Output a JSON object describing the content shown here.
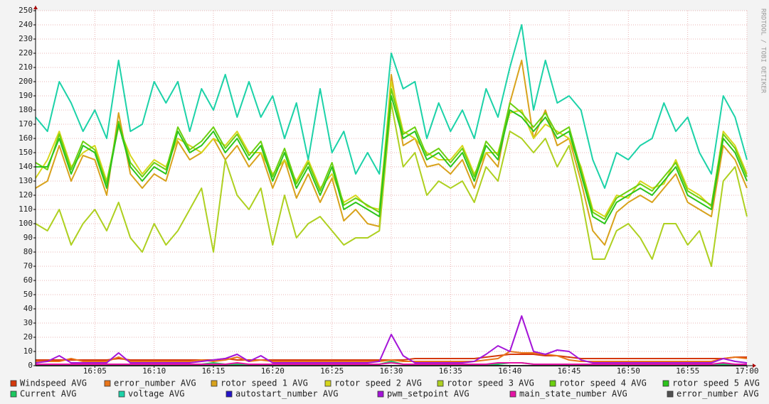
{
  "chart_data": {
    "type": "line",
    "watermark": "RRDTOOL / TOBI OETIKER",
    "x": [
      960,
      961,
      962,
      963,
      964,
      965,
      966,
      967,
      968,
      969,
      970,
      971,
      972,
      973,
      974,
      975,
      976,
      977,
      978,
      979,
      980,
      981,
      982,
      983,
      984,
      985,
      986,
      987,
      988,
      989,
      990,
      991,
      992,
      993,
      994,
      995,
      996,
      997,
      998,
      999,
      1000,
      1001,
      1002,
      1003,
      1004,
      1005,
      1006,
      1007,
      1008,
      1009,
      1010,
      1011,
      1012,
      1013,
      1014,
      1015,
      1016,
      1017,
      1018,
      1019,
      1020
    ],
    "xlim": [
      960,
      1020
    ],
    "xticks": [
      {
        "value": 965,
        "label": "16:05"
      },
      {
        "value": 970,
        "label": "16:10"
      },
      {
        "value": 975,
        "label": "16:15"
      },
      {
        "value": 980,
        "label": "16:20"
      },
      {
        "value": 985,
        "label": "16:25"
      },
      {
        "value": 990,
        "label": "16:30"
      },
      {
        "value": 995,
        "label": "16:35"
      },
      {
        "value": 1000,
        "label": "16:40"
      },
      {
        "value": 1005,
        "label": "16:45"
      },
      {
        "value": 1010,
        "label": "16:50"
      },
      {
        "value": 1015,
        "label": "16:55"
      },
      {
        "value": 1020,
        "label": "17:00"
      }
    ],
    "ylim": [
      0,
      250
    ],
    "yticks": [
      0,
      10,
      20,
      30,
      40,
      50,
      60,
      70,
      80,
      90,
      100,
      110,
      120,
      130,
      140,
      150,
      160,
      170,
      180,
      190,
      200,
      210,
      220,
      230,
      240,
      250
    ],
    "grid": true,
    "series": [
      {
        "name": "Windspeed AVG",
        "color": "#d4380c",
        "values": [
          4,
          4,
          4,
          4,
          4,
          4,
          4,
          5,
          4,
          4,
          4,
          4,
          4,
          4,
          4,
          4,
          5,
          4,
          4,
          4,
          4,
          4,
          4,
          4,
          4,
          4,
          4,
          4,
          4,
          4,
          4,
          4,
          5,
          5,
          5,
          5,
          5,
          5,
          6,
          7,
          8,
          8,
          8,
          7,
          7,
          6,
          5,
          5,
          5,
          5,
          5,
          5,
          5,
          5,
          5,
          5,
          5,
          5,
          5,
          6,
          6
        ]
      },
      {
        "name": "error_number AVG",
        "color": "#e8751a",
        "values": [
          3,
          3,
          3,
          5,
          3,
          3,
          3,
          6,
          3,
          3,
          3,
          3,
          3,
          3,
          4,
          3,
          4,
          6,
          3,
          4,
          3,
          3,
          3,
          3,
          3,
          3,
          3,
          3,
          3,
          3,
          4,
          3,
          3,
          3,
          3,
          3,
          3,
          3,
          4,
          5,
          10,
          9,
          9,
          8,
          7,
          4,
          3,
          3,
          3,
          3,
          3,
          3,
          3,
          3,
          3,
          3,
          3,
          3,
          5,
          6,
          5
        ]
      },
      {
        "name": "rotor speed 1 AVG",
        "color": "#d8a21c",
        "values": [
          125,
          130,
          155,
          130,
          148,
          145,
          120,
          178,
          135,
          125,
          135,
          130,
          158,
          145,
          150,
          160,
          145,
          155,
          140,
          150,
          125,
          145,
          118,
          135,
          115,
          132,
          102,
          110,
          100,
          98,
          205,
          155,
          160,
          140,
          142,
          135,
          145,
          125,
          150,
          140,
          185,
          215,
          160,
          180,
          155,
          160,
          130,
          95,
          85,
          108,
          115,
          120,
          115,
          125,
          135,
          115,
          110,
          105,
          155,
          145,
          125
        ]
      },
      {
        "name": "rotor speed 2 AVG",
        "color": "#d6d61c",
        "values": [
          132,
          145,
          165,
          140,
          150,
          155,
          130,
          168,
          148,
          135,
          145,
          140,
          160,
          155,
          150,
          160,
          155,
          165,
          150,
          150,
          135,
          145,
          130,
          145,
          125,
          135,
          115,
          120,
          112,
          110,
          200,
          165,
          160,
          150,
          145,
          145,
          155,
          135,
          150,
          150,
          178,
          180,
          160,
          170,
          165,
          160,
          140,
          110,
          105,
          120,
          118,
          130,
          125,
          128,
          145,
          125,
          120,
          112,
          165,
          155,
          135
        ]
      },
      {
        "name": "rotor speed 3 AVG",
        "color": "#aed020",
        "values": [
          100,
          95,
          110,
          85,
          100,
          110,
          95,
          115,
          90,
          80,
          100,
          85,
          95,
          110,
          125,
          80,
          145,
          120,
          110,
          125,
          85,
          120,
          90,
          100,
          105,
          95,
          85,
          90,
          90,
          95,
          185,
          140,
          150,
          120,
          130,
          125,
          130,
          115,
          140,
          130,
          165,
          160,
          150,
          160,
          140,
          155,
          120,
          75,
          75,
          95,
          100,
          90,
          75,
          100,
          100,
          85,
          95,
          70,
          130,
          140,
          105
        ]
      },
      {
        "name": "rotor speed 4 AVG",
        "color": "#6cd010",
        "values": [
          143,
          138,
          163,
          138,
          158,
          152,
          128,
          172,
          143,
          133,
          143,
          138,
          168,
          152,
          158,
          168,
          153,
          163,
          148,
          158,
          133,
          153,
          128,
          143,
          123,
          143,
          113,
          118,
          113,
          108,
          195,
          163,
          168,
          148,
          153,
          143,
          153,
          133,
          158,
          148,
          185,
          178,
          168,
          178,
          163,
          168,
          138,
          108,
          103,
          118,
          123,
          128,
          123,
          133,
          143,
          123,
          118,
          113,
          163,
          153,
          133
        ]
      },
      {
        "name": "rotor speed 5 AVG",
        "color": "#2cc41c",
        "values": [
          140,
          140,
          160,
          135,
          155,
          150,
          125,
          170,
          140,
          130,
          140,
          135,
          165,
          150,
          155,
          165,
          150,
          160,
          145,
          155,
          130,
          150,
          125,
          140,
          120,
          140,
          110,
          115,
          110,
          105,
          190,
          160,
          165,
          145,
          150,
          140,
          150,
          130,
          155,
          145,
          180,
          175,
          165,
          175,
          160,
          165,
          135,
          105,
          100,
          115,
          120,
          125,
          120,
          130,
          140,
          120,
          115,
          110,
          160,
          150,
          130
        ]
      },
      {
        "name": "Current AVG",
        "color": "#1cc860",
        "values": [
          1,
          1,
          1,
          1,
          1,
          1,
          1,
          1,
          1,
          1,
          1,
          1,
          1,
          1,
          1,
          2,
          1,
          1,
          1,
          1,
          1,
          1,
          1,
          1,
          1,
          1,
          1,
          1,
          1,
          1,
          3,
          1,
          1,
          1,
          1,
          1,
          1,
          1,
          1,
          1,
          2,
          2,
          1,
          1,
          1,
          1,
          1,
          1,
          1,
          1,
          1,
          1,
          1,
          1,
          1,
          1,
          1,
          1,
          1,
          1,
          1
        ]
      },
      {
        "name": "voltage AVG",
        "color": "#1cd2a8",
        "values": [
          175,
          165,
          200,
          185,
          165,
          180,
          160,
          215,
          165,
          170,
          200,
          185,
          200,
          165,
          195,
          180,
          205,
          175,
          200,
          175,
          190,
          160,
          185,
          145,
          195,
          150,
          165,
          135,
          150,
          135,
          220,
          195,
          200,
          160,
          185,
          165,
          180,
          160,
          195,
          175,
          210,
          240,
          180,
          215,
          185,
          190,
          180,
          145,
          125,
          150,
          145,
          155,
          160,
          185,
          165,
          175,
          150,
          135,
          190,
          175,
          145
        ]
      },
      {
        "name": "autostart_number AVG",
        "color": "#2414c8",
        "values": [
          0,
          0,
          0,
          0,
          0,
          0,
          0,
          0,
          0,
          0,
          0,
          0,
          0,
          0,
          0,
          0,
          0,
          0,
          0,
          0,
          0,
          0,
          0,
          0,
          0,
          0,
          0,
          0,
          0,
          0,
          0,
          0,
          0,
          0,
          0,
          0,
          0,
          0,
          0,
          0,
          0,
          0,
          0,
          0,
          0,
          0,
          0,
          0,
          0,
          0,
          0,
          0,
          0,
          0,
          0,
          0,
          0,
          0,
          0,
          0,
          0
        ]
      },
      {
        "name": "pwm_setpoint AVG",
        "color": "#a414d8",
        "values": [
          2,
          3,
          7,
          2,
          2,
          2,
          2,
          9,
          2,
          2,
          2,
          2,
          2,
          2,
          3,
          4,
          5,
          8,
          3,
          7,
          2,
          2,
          2,
          2,
          2,
          2,
          2,
          2,
          2,
          3,
          22,
          7,
          2,
          2,
          2,
          2,
          2,
          3,
          8,
          14,
          10,
          35,
          10,
          8,
          11,
          10,
          4,
          2,
          2,
          2,
          2,
          2,
          2,
          2,
          2,
          2,
          2,
          2,
          5,
          3,
          2
        ]
      },
      {
        "name": "main_state_number AVG",
        "color": "#e414a4",
        "values": [
          1,
          1,
          1,
          1,
          1,
          1,
          1,
          1,
          1,
          1,
          1,
          1,
          1,
          1,
          1,
          1,
          1,
          2,
          1,
          1,
          1,
          1,
          1,
          1,
          1,
          1,
          1,
          1,
          1,
          1,
          2,
          1,
          1,
          1,
          1,
          1,
          1,
          1,
          1,
          2,
          2,
          2,
          1,
          1,
          1,
          1,
          1,
          1,
          1,
          1,
          1,
          1,
          1,
          1,
          1,
          1,
          1,
          1,
          2,
          1,
          1
        ]
      },
      {
        "name": "error_number AVG",
        "color": "#505050",
        "values": [
          0,
          0,
          0,
          0,
          0,
          0,
          0,
          0,
          0,
          0,
          0,
          0,
          0,
          0,
          0,
          0,
          0,
          0,
          0,
          0,
          0,
          0,
          0,
          0,
          0,
          0,
          0,
          0,
          0,
          0,
          0,
          0,
          0,
          0,
          0,
          0,
          0,
          0,
          0,
          0,
          0,
          0,
          0,
          0,
          0,
          0,
          0,
          0,
          0,
          0,
          0,
          0,
          0,
          0,
          0,
          0,
          0,
          0,
          0,
          0,
          0
        ]
      }
    ]
  }
}
